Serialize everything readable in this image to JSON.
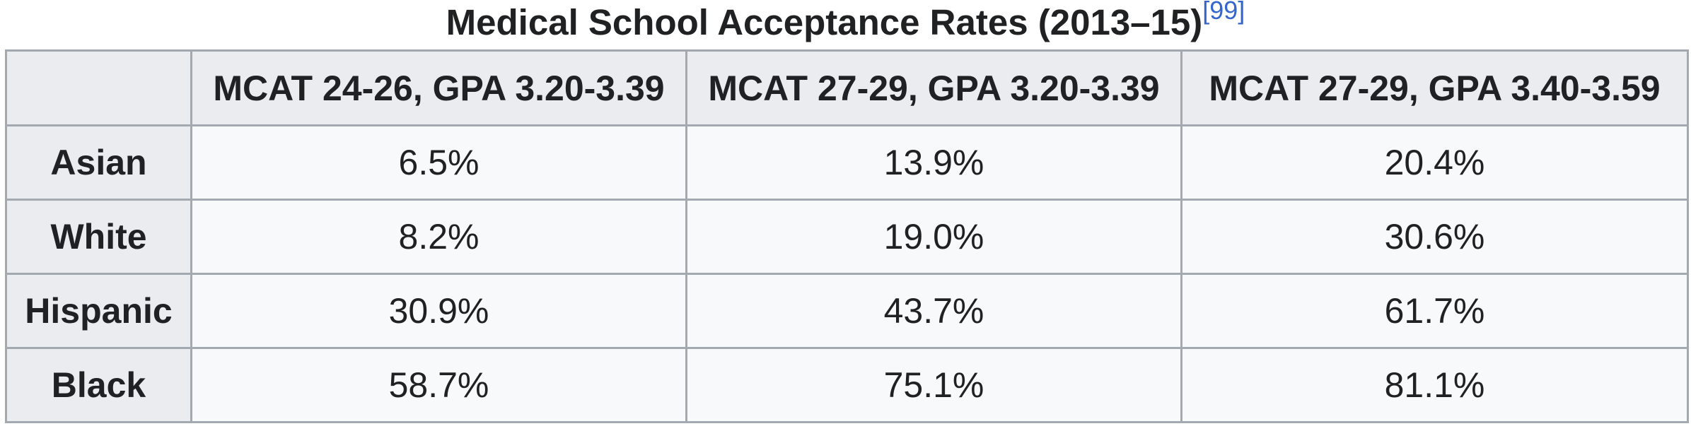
{
  "caption": {
    "title": "Medical School Acceptance Rates (2013–15)",
    "ref": "[99]"
  },
  "table": {
    "corner": "",
    "columns": [
      "MCAT 24-26, GPA 3.20-3.39",
      "MCAT 27-29, GPA 3.20-3.39",
      "MCAT 27-29, GPA 3.40-3.59"
    ],
    "rows": [
      {
        "label": "Asian",
        "values": [
          "6.5%",
          "13.9%",
          "20.4%"
        ]
      },
      {
        "label": "White",
        "values": [
          "8.2%",
          "19.0%",
          "30.6%"
        ]
      },
      {
        "label": "Hispanic",
        "values": [
          "30.9%",
          "43.7%",
          "61.7%"
        ]
      },
      {
        "label": "Black",
        "values": [
          "58.7%",
          "75.1%",
          "81.1%"
        ]
      }
    ]
  },
  "colors": {
    "header_bg": "#eaecf0",
    "cell_bg": "#f8f9fa",
    "border": "#a2a9b1",
    "link": "#3366cc",
    "text": "#202122"
  }
}
